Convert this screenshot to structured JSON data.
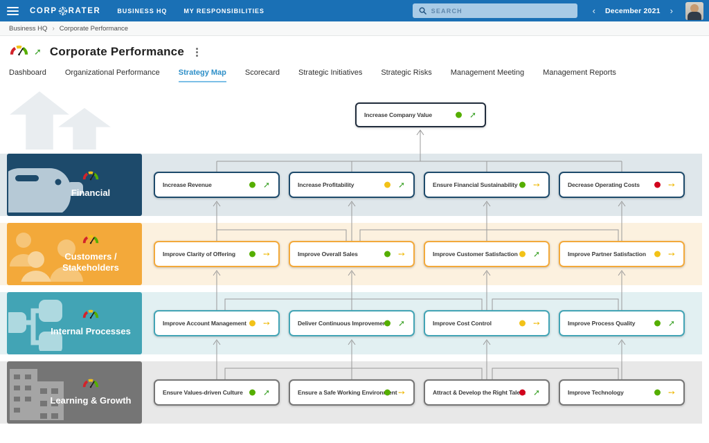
{
  "topbar": {
    "brand": {
      "full": "CORPORATER",
      "left": "CORP",
      "right": "RATER"
    },
    "nav_items": [
      "BUSINESS HQ",
      "MY RESPONSIBILITIES"
    ],
    "search_placeholder": "SEARCH",
    "period": "December 2021",
    "prev_glyph": "‹",
    "next_glyph": "›",
    "icons": [
      "hamburger-icon",
      "compass-logo-icon",
      "search-icon",
      "chevron-left-icon",
      "chevron-right-icon",
      "user-avatar"
    ]
  },
  "breadcrumb": {
    "items": [
      "Business HQ",
      "Corporate Performance"
    ],
    "separator": "›"
  },
  "page": {
    "title": "Corporate Performance",
    "title_icon": "gauge-icon",
    "title_trend": "up"
  },
  "tabs": [
    {
      "label": "Dashboard",
      "active": false
    },
    {
      "label": "Organizational Performance",
      "active": false
    },
    {
      "label": "Strategy Map",
      "active": true
    },
    {
      "label": "Scorecard",
      "active": false
    },
    {
      "label": "Strategic Initiatives",
      "active": false
    },
    {
      "label": "Strategic Risks",
      "active": false
    },
    {
      "label": "Management Meeting",
      "active": false
    },
    {
      "label": "Management Reports",
      "active": false
    }
  ],
  "strategy_map": {
    "top_node": {
      "label": "Increase Company Value",
      "status": "green",
      "trend": "up",
      "border_color": "#202c3c"
    },
    "perspectives": [
      {
        "name": "Financial",
        "icon": "piggy-bank-icon",
        "header_color": "#1d4a6b",
        "band_color": "#dfe7eb",
        "icon_color": "#b6c9d6",
        "nodes": [
          {
            "label": "Increase Revenue",
            "status": "green",
            "trend": "up"
          },
          {
            "label": "Increase Profitability",
            "status": "yellow",
            "trend": "up"
          },
          {
            "label": "Ensure Financial Sustainability",
            "status": "green",
            "trend": "flat"
          },
          {
            "label": "Decrease Operating Costs",
            "status": "red",
            "trend": "flat"
          }
        ]
      },
      {
        "name": "Customers / Stakeholders",
        "icon": "people-icon",
        "header_color": "#f3a93a",
        "band_color": "#fcf1df",
        "icon_color": "#f8d49a",
        "nodes": [
          {
            "label": "Improve Clarity of Offering",
            "status": "green",
            "trend": "flat"
          },
          {
            "label": "Improve Overall Sales",
            "status": "green",
            "trend": "flat"
          },
          {
            "label": "Improve Customer Satisfaction",
            "status": "yellow",
            "trend": "up"
          },
          {
            "label": "Improve Partner Satisfaction",
            "status": "yellow",
            "trend": "flat"
          }
        ]
      },
      {
        "name": "Internal Processes",
        "icon": "process-icon",
        "header_color": "#42a4b5",
        "band_color": "#e2f0f2",
        "icon_color": "#aed9e0",
        "nodes": [
          {
            "label": "Improve Account Management",
            "status": "yellow",
            "trend": "flat"
          },
          {
            "label": "Deliver Continuous Improvement",
            "status": "green",
            "trend": "up"
          },
          {
            "label": "Improve Cost Control",
            "status": "yellow",
            "trend": "flat"
          },
          {
            "label": "Improve Process Quality",
            "status": "green",
            "trend": "up"
          }
        ]
      },
      {
        "name": "Learning & Growth",
        "icon": "building-icon",
        "header_color": "#757575",
        "band_color": "#e8e8e8",
        "icon_color": "#a5a5a5",
        "nodes": [
          {
            "label": "Ensure Values-driven Culture",
            "status": "green",
            "trend": "up"
          },
          {
            "label": "Ensure a Safe Working Environment",
            "status": "green",
            "trend": "flat"
          },
          {
            "label": "Attract & Develop the Right Talent",
            "status": "red",
            "trend": "up"
          },
          {
            "label": "Improve Technology",
            "status": "green",
            "trend": "flat"
          }
        ]
      }
    ]
  },
  "status_colors": {
    "green": "#55ae00",
    "yellow": "#f2c218",
    "red": "#d1021c"
  },
  "trend_colors": {
    "up": "#3fa32c",
    "flat": "#f0bd16"
  },
  "trend_glyphs": {
    "up": "➚",
    "flat": "➙"
  }
}
